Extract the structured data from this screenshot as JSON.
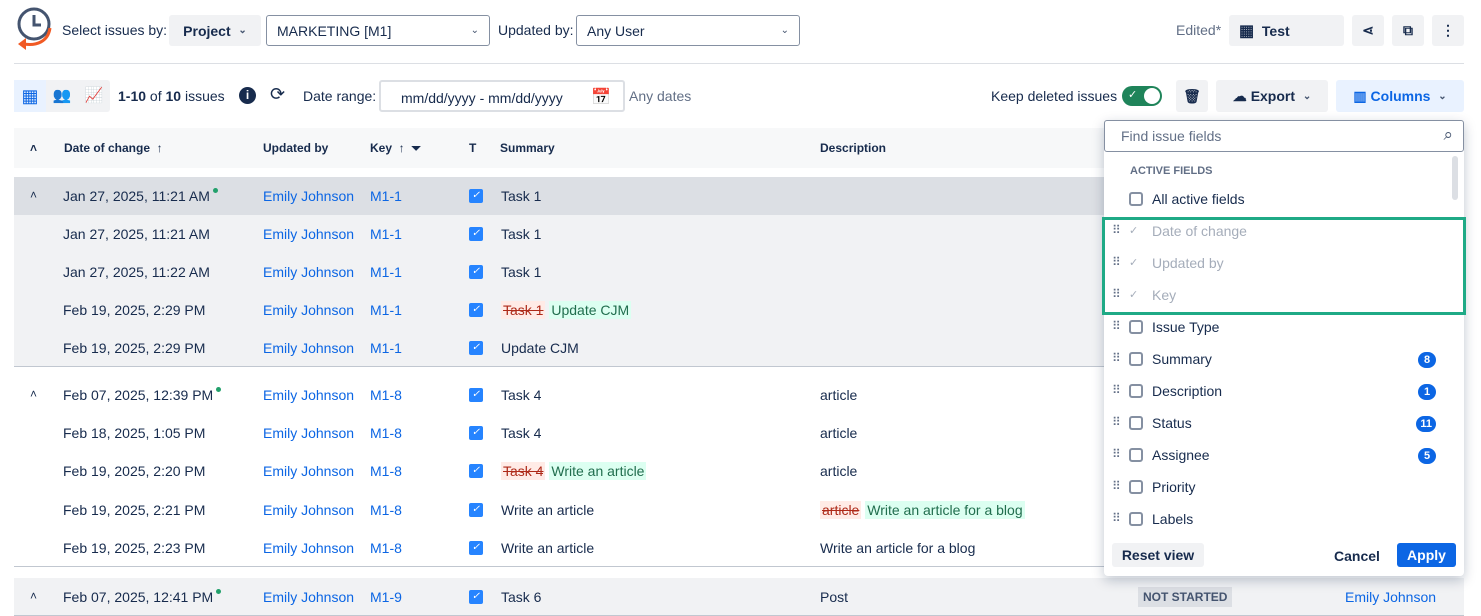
{
  "toolbar": {
    "select_label": "Select issues by:",
    "select_type": "Project",
    "project": "MARKETING [M1]",
    "updated_by_label": "Updated by:",
    "updated_by": "Any User",
    "edited": "Edited*",
    "view_name": "Test"
  },
  "subbar": {
    "count_range": "1-10",
    "count_of": "of",
    "count_total": "10",
    "count_unit": "issues",
    "date_range_label": "Date range:",
    "date_placeholder": "mm/dd/yyyy - mm/dd/yyyy",
    "any_dates": "Any dates",
    "keep_deleted": "Keep deleted issues",
    "keep_deleted_on": true,
    "export": "Export",
    "columns": "Columns"
  },
  "table": {
    "headers": {
      "date": "Date of change",
      "updated_by": "Updated by",
      "key": "Key",
      "type": "T",
      "summary": "Summary",
      "description": "Description"
    },
    "groups": [
      {
        "rows": [
          {
            "date": "Jan 27, 2025, 11:21 AM",
            "new": true,
            "user": "Emily Johnson",
            "key": "M1-1",
            "summary": "Task 1",
            "description": ""
          },
          {
            "date": "Jan 27, 2025, 11:21 AM",
            "user": "Emily Johnson",
            "key": "M1-1",
            "summary": "Task 1",
            "description": ""
          },
          {
            "date": "Jan 27, 2025, 11:22 AM",
            "user": "Emily Johnson",
            "key": "M1-1",
            "summary": "Task 1",
            "description": ""
          },
          {
            "date": "Feb 19, 2025, 2:29 PM",
            "user": "Emily Johnson",
            "key": "M1-1",
            "summary_old": "Task 1",
            "summary": "Update CJM",
            "description": ""
          },
          {
            "date": "Feb 19, 2025, 2:29 PM",
            "user": "Emily Johnson",
            "key": "M1-1",
            "summary": "Update CJM",
            "description": ""
          }
        ]
      },
      {
        "rows": [
          {
            "date": "Feb 07, 2025, 12:39 PM",
            "new": true,
            "user": "Emily Johnson",
            "key": "M1-8",
            "summary": "Task 4",
            "description": "article"
          },
          {
            "date": "Feb 18, 2025, 1:05 PM",
            "user": "Emily Johnson",
            "key": "M1-8",
            "summary": "Task 4",
            "description": "article"
          },
          {
            "date": "Feb 19, 2025, 2:20 PM",
            "user": "Emily Johnson",
            "key": "M1-8",
            "summary_old": "Task 4",
            "summary": "Write an article",
            "description": "article"
          },
          {
            "date": "Feb 19, 2025, 2:21 PM",
            "user": "Emily Johnson",
            "key": "M1-8",
            "summary": "Write an article",
            "description_old": "article",
            "description": "Write an article for a blog"
          },
          {
            "date": "Feb 19, 2025, 2:23 PM",
            "user": "Emily Johnson",
            "key": "M1-8",
            "summary": "Write an article",
            "description": "Write an article for a blog"
          }
        ]
      },
      {
        "rows": [
          {
            "date": "Feb 07, 2025, 12:41 PM",
            "new": true,
            "user": "Emily Johnson",
            "key": "M1-9",
            "summary": "Task 6",
            "description": "Post",
            "status": "NOT STARTED",
            "assignee": "Emily Johnson"
          }
        ]
      }
    ]
  },
  "columns_panel": {
    "search_placeholder": "Find issue fields",
    "section": "ACTIVE FIELDS",
    "all_label": "All active fields",
    "fields": [
      {
        "label": "Date of change",
        "checked": true,
        "disabled": true
      },
      {
        "label": "Updated by",
        "checked": true,
        "disabled": true
      },
      {
        "label": "Key",
        "checked": true,
        "disabled": true
      },
      {
        "label": "Issue Type"
      },
      {
        "label": "Summary",
        "count": "8"
      },
      {
        "label": "Description",
        "count": "1"
      },
      {
        "label": "Status",
        "count": "11"
      },
      {
        "label": "Assignee",
        "count": "5"
      },
      {
        "label": "Priority"
      },
      {
        "label": "Labels"
      }
    ],
    "reset": "Reset view",
    "cancel": "Cancel",
    "apply": "Apply"
  },
  "colors": {
    "accent": "#0c66e4",
    "highlight": "#1faa86",
    "toggle": "#1f845a"
  }
}
